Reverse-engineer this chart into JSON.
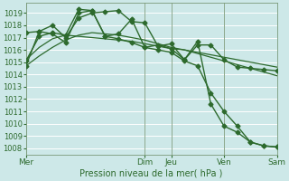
{
  "background_color": "#cde8e8",
  "grid_color": "#ffffff",
  "line_color": "#2d6a2d",
  "title": "Pression niveau de la mer( hPa )",
  "ylim": [
    1007.5,
    1019.8
  ],
  "yticks": [
    1008,
    1009,
    1010,
    1011,
    1012,
    1013,
    1014,
    1015,
    1016,
    1017,
    1018,
    1019
  ],
  "xtick_labels": [
    "Mer",
    "Dim",
    "Jeu",
    "Ven",
    "Sam"
  ],
  "xtick_positions": [
    0,
    9,
    11,
    15,
    19
  ],
  "vlines": [
    0,
    9,
    11,
    15,
    19
  ],
  "total_x": 19,
  "smooth1_x": [
    0,
    1,
    2,
    3,
    4,
    5,
    6,
    7,
    8,
    9,
    10,
    11,
    12,
    13,
    14,
    15,
    16,
    17,
    18,
    19
  ],
  "smooth1_y": [
    1015.2,
    1016.2,
    1016.9,
    1017.2,
    1017.1,
    1017.0,
    1016.9,
    1016.8,
    1016.7,
    1016.5,
    1016.3,
    1016.1,
    1016.0,
    1015.8,
    1015.6,
    1015.4,
    1015.2,
    1015.0,
    1014.8,
    1014.6
  ],
  "smooth2_x": [
    0,
    1,
    2,
    3,
    4,
    5,
    6,
    7,
    8,
    9,
    10,
    11,
    12,
    13,
    14,
    15,
    16,
    17,
    18,
    19
  ],
  "smooth2_y": [
    1014.7,
    1015.5,
    1016.2,
    1016.8,
    1017.2,
    1017.4,
    1017.3,
    1017.2,
    1017.0,
    1016.8,
    1016.5,
    1016.2,
    1016.0,
    1015.7,
    1015.4,
    1015.1,
    1014.8,
    1014.5,
    1014.2,
    1013.9
  ],
  "marker1_x": [
    0,
    1,
    2,
    3,
    4,
    5,
    6,
    7,
    8,
    9,
    10,
    11,
    12,
    13,
    14,
    15,
    16,
    17,
    18,
    19
  ],
  "marker1_y": [
    1017.4,
    1017.5,
    1018.0,
    1017.0,
    1018.6,
    1019.0,
    1019.1,
    1019.2,
    1018.3,
    1018.2,
    1016.3,
    1016.5,
    1015.2,
    1016.4,
    1016.4,
    1015.2,
    1014.6,
    1014.5,
    1014.4,
    1014.3
  ],
  "marker2_x": [
    0,
    1,
    2,
    3,
    4,
    5,
    6,
    7,
    8,
    9,
    10,
    11,
    12,
    13,
    14,
    15,
    16,
    17,
    18,
    19
  ],
  "marker2_y": [
    1015.1,
    1017.1,
    1017.4,
    1017.2,
    1019.3,
    1019.2,
    1017.1,
    1017.3,
    1018.5,
    1016.2,
    1016.4,
    1016.1,
    1015.2,
    1016.7,
    1011.6,
    1009.8,
    1009.3,
    1008.5,
    1008.2,
    1008.1
  ],
  "marker3_x": [
    0,
    1,
    2,
    3,
    4,
    5,
    6,
    7,
    8,
    9,
    10,
    11,
    12,
    13,
    14,
    15,
    16,
    17,
    18,
    19
  ],
  "marker3_y": [
    1014.7,
    1017.5,
    1017.3,
    1016.6,
    1019.0,
    1019.2,
    1017.1,
    1016.9,
    1016.6,
    1016.2,
    1016.0,
    1015.8,
    1015.1,
    1014.7,
    1012.5,
    1011.0,
    1009.8,
    1008.5,
    1008.2,
    1008.1
  ]
}
